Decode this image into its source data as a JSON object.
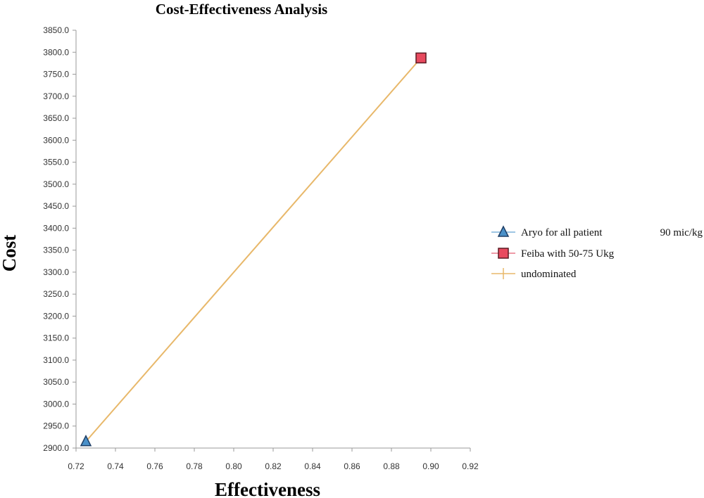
{
  "chart_data": {
    "type": "scatter",
    "title": "Cost-Effectiveness Analysis",
    "xlabel": "Effectiveness",
    "ylabel": "Cost",
    "xlim": [
      0.72,
      0.92
    ],
    "ylim": [
      2900.0,
      3850.0
    ],
    "x_ticks": [
      "0.72",
      "0.74",
      "0.76",
      "0.78",
      "0.80",
      "0.82",
      "0.84",
      "0.86",
      "0.88",
      "0.90",
      "0.92"
    ],
    "y_ticks": [
      "2900.0",
      "2950.0",
      "3000.0",
      "3050.0",
      "3100.0",
      "3150.0",
      "3200.0",
      "3250.0",
      "3300.0",
      "3350.0",
      "3400.0",
      "3450.0",
      "3500.0",
      "3550.0",
      "3600.0",
      "3650.0",
      "3700.0",
      "3750.0",
      "3800.0",
      "3850.0"
    ],
    "grid": false,
    "legend_position": "right",
    "series": [
      {
        "name": "Aryo for all patient",
        "name_suffix": "90 mic/kg",
        "marker": "triangle",
        "color": "#4a90c8",
        "stroke": "#1f3f66",
        "points": [
          {
            "x": 0.725,
            "y": 2915.0
          }
        ]
      },
      {
        "name": "Feiba with 50-75 Ukg",
        "marker": "square",
        "color": "#e84a5f",
        "stroke": "#5a1a22",
        "points": [
          {
            "x": 0.895,
            "y": 3787.0
          }
        ]
      },
      {
        "name": "undominated",
        "marker": "line",
        "color": "#e8b86a",
        "points": [
          {
            "x": 0.725,
            "y": 2915.0
          },
          {
            "x": 0.895,
            "y": 3787.0
          }
        ]
      }
    ]
  }
}
